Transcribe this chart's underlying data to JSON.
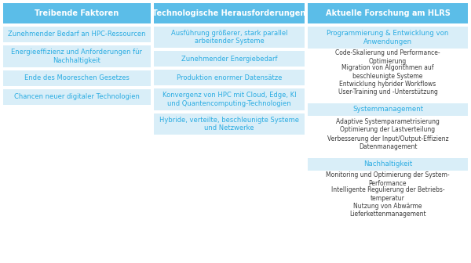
{
  "bg_color": "#ffffff",
  "header_bg": "#5bbde8",
  "cell_bg": "#d9eef8",
  "header_text_color": "#ffffff",
  "cell_text_color": "#2aace2",
  "body_text_color": "#3a3a3a",
  "headers": [
    "Treibende Faktoren",
    "Technologische Herausforderungen",
    "Aktuelle Forschung am HLRS"
  ],
  "col1_cells": [
    "Zunehmender Bedarf an HPC-Ressourcen",
    "Energieeffizienz und Anforderungen für\nNachhaltigkeit",
    "Ende des Mooreschen Gesetzes",
    "Chancen neuer digitaler Technologien"
  ],
  "col2_cells": [
    "Ausführung größerer, stark parallel\narbeitender Systeme",
    "Zunehmender Energiebedarf",
    "Produktion enormer Datensätze",
    "Konvergenz von HPC mit Cloud, Edge, KI\nund Quantencomputing-Technologien",
    "Hybride, verteilte, beschleunigte Systeme\nund Netzwerke"
  ],
  "col3_sections": [
    {
      "header": "Programmierung & Entwicklung von\nAnwendungen",
      "items": [
        "Code-Skalierung und Performance-\nOptimierung",
        "Migration von Algorithmen auf\nbeschleunigte Systeme",
        "Entwicklung hybrider Workflows",
        "User-Training und -Unterstützung"
      ]
    },
    {
      "header": "Systemmanagement",
      "items": [
        "Adaptive Systemparametrisierung",
        "Optimierung der Lastverteilung",
        "Verbesserung der Input/Output-Effizienz",
        "Datenmanagement"
      ]
    },
    {
      "header": "Nachhaltigkeit",
      "items": [
        "Monitoring und Optimierung der System-\nPerformance",
        "Intelligente Regulierung der Betriebs-\ntemperatur",
        "Nutzung von Abwärme",
        "Lieferkettenmanagement"
      ]
    }
  ]
}
